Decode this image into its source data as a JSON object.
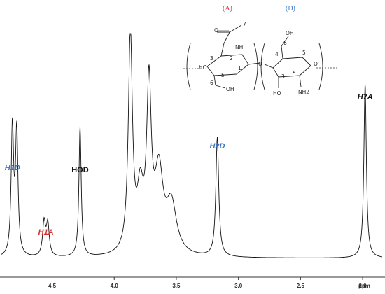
{
  "chart_data": {
    "type": "line",
    "title": "",
    "xlabel": "ppm",
    "xlim": [
      4.92,
      1.82
    ],
    "x_reversed": true,
    "x_ticks": [
      4.5,
      4.0,
      3.5,
      3.0,
      2.5,
      2.0
    ],
    "x_tick_labels": [
      "4.5",
      "4.0",
      "3.5",
      "3.0",
      "2.5",
      "2.0"
    ],
    "ylim": [
      0,
      1
    ],
    "grid": false,
    "series": [
      {
        "values_note": "",
        "peaks": [
          {
            "x": 4.82,
            "y": 0.57,
            "width": 0.012
          },
          {
            "x": 4.785,
            "y": 0.55,
            "width": 0.012
          },
          {
            "x": 4.565,
            "y": 0.15,
            "width": 0.014
          },
          {
            "x": 4.535,
            "y": 0.14,
            "width": 0.014
          },
          {
            "x": 4.275,
            "y": 0.58,
            "width": 0.011
          },
          {
            "x": 3.87,
            "y": 0.97,
            "width": 0.02
          },
          {
            "x": 3.72,
            "y": 0.72,
            "width": 0.022
          },
          {
            "x": 3.79,
            "y": 0.25,
            "width": 0.03
          },
          {
            "x": 3.64,
            "y": 0.35,
            "width": 0.04
          },
          {
            "x": 3.54,
            "y": 0.22,
            "width": 0.05
          },
          {
            "x": 3.17,
            "y": 0.53,
            "width": 0.014
          },
          {
            "x": 1.98,
            "y": 0.78,
            "width": 0.012
          }
        ]
      }
    ],
    "annotations": [
      {
        "key": "h1d",
        "text": "H1D",
        "x": 4.82,
        "color": "#3a78c4",
        "italic": true
      },
      {
        "key": "h1a",
        "text": "H1A",
        "x": 4.55,
        "color": "#d63030",
        "italic": true
      },
      {
        "key": "hod",
        "text": "HOD",
        "x": 4.275,
        "color": "#111111",
        "italic": false
      },
      {
        "key": "h2d",
        "text": "H2D",
        "x": 3.17,
        "color": "#3a78c4",
        "italic": true
      },
      {
        "key": "h7a",
        "text": "H7A",
        "x": 1.98,
        "color": "#111111",
        "italic": true
      }
    ]
  },
  "structure": {
    "residue_a_label": "(A)",
    "residue_d_label": "(D)",
    "residue_a_color": "#d63030",
    "residue_d_color": "#3a78c4",
    "atoms": [
      "7",
      "NH",
      "2",
      "3",
      "HO",
      "1",
      "5",
      "6",
      "OH",
      "O",
      "O",
      "4",
      "6",
      "OH",
      "5",
      "3",
      "2",
      "HO",
      "NH2",
      "O"
    ]
  },
  "labels": {
    "h1d": "H1D",
    "h1a": "H1A",
    "hod": "HOD",
    "h2d": "H2D",
    "h7a": "H7A",
    "x_unit": "ppm"
  }
}
